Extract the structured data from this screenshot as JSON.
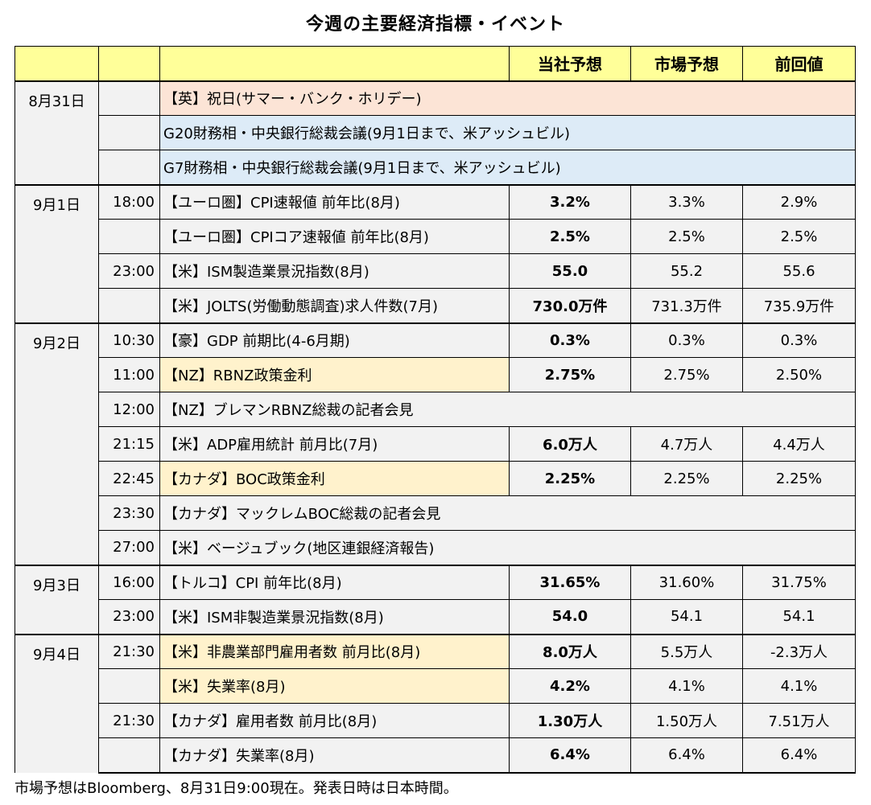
{
  "title": "今週の主要経済指標・イベント",
  "header": {
    "own": "当社予想",
    "market": "市場予想",
    "previous": "前回値"
  },
  "groups": [
    {
      "date": "8月31日",
      "rows": [
        {
          "time": "",
          "event": "【英】祝日(サマー・バンク・ホリデー)",
          "span": true,
          "hl": "pink"
        },
        {
          "time": "",
          "event": "G20財務相・中央銀行総裁会議(9月1日まで、米アッシュビル)",
          "span": true,
          "hl": "blue"
        },
        {
          "time": "",
          "event": "G7財務相・中央銀行総裁会議(9月1日まで、米アッシュビル)",
          "span": true,
          "hl": "blue"
        }
      ]
    },
    {
      "date": "9月1日",
      "rows": [
        {
          "time": "18:00",
          "event": "【ユーロ圏】CPI速報値 前年比(8月)",
          "own": "3.2%",
          "market": "3.3%",
          "previous": "2.9%"
        },
        {
          "time": "",
          "event": "【ユーロ圏】CPIコア速報値 前年比(8月)",
          "own": "2.5%",
          "market": "2.5%",
          "previous": "2.5%"
        },
        {
          "time": "23:00",
          "event": "【米】ISM製造業景況指数(8月)",
          "own": "55.0",
          "market": "55.2",
          "previous": "55.6"
        },
        {
          "time": "",
          "event": "【米】JOLTS(労働動態調査)求人件数(7月)",
          "own": "730.0万件",
          "market": "731.3万件",
          "previous": "735.9万件"
        }
      ]
    },
    {
      "date": "9月2日",
      "rows": [
        {
          "time": "10:30",
          "event": "【豪】GDP 前期比(4-6月期)",
          "own": "0.3%",
          "market": "0.3%",
          "previous": "0.3%"
        },
        {
          "time": "11:00",
          "event": "【NZ】RBNZ政策金利",
          "own": "2.75%",
          "market": "2.75%",
          "previous": "2.50%",
          "hl": "yellow"
        },
        {
          "time": "12:00",
          "event": "【NZ】ブレマンRBNZ総裁の記者会見",
          "span": true
        },
        {
          "time": "21:15",
          "event": "【米】ADP雇用統計 前月比(7月)",
          "own": "6.0万人",
          "market": "4.7万人",
          "previous": "4.4万人"
        },
        {
          "time": "22:45",
          "event": "【カナダ】BOC政策金利",
          "own": "2.25%",
          "market": "2.25%",
          "previous": "2.25%",
          "hl": "yellow"
        },
        {
          "time": "23:30",
          "event": "【カナダ】マックレムBOC総裁の記者会見",
          "span": true
        },
        {
          "time": "27:00",
          "event": "【米】ベージュブック(地区連銀経済報告)",
          "span": true
        }
      ]
    },
    {
      "date": "9月3日",
      "rows": [
        {
          "time": "16:00",
          "event": "【トルコ】CPI 前年比(8月)",
          "own": "31.65%",
          "market": "31.60%",
          "previous": "31.75%"
        },
        {
          "time": "23:00",
          "event": "【米】ISM非製造業景況指数(8月)",
          "own": "54.0",
          "market": "54.1",
          "previous": "54.1"
        }
      ]
    },
    {
      "date": "9月4日",
      "rows": [
        {
          "time": "21:30",
          "event": "【米】非農業部門雇用者数 前月比(8月)",
          "own": "8.0万人",
          "market": "5.5万人",
          "previous": "-2.3万人",
          "hl": "yellow"
        },
        {
          "time": "",
          "event": "【米】失業率(8月)",
          "own": "4.2%",
          "market": "4.1%",
          "previous": "4.1%",
          "hl": "yellow"
        },
        {
          "time": "21:30",
          "event": "【カナダ】雇用者数 前月比(8月)",
          "own": "1.30万人",
          "market": "1.50万人",
          "previous": "7.51万人"
        },
        {
          "time": "",
          "event": "【カナダ】失業率(8月)",
          "own": "6.4%",
          "market": "6.4%",
          "previous": "6.4%"
        }
      ]
    }
  ],
  "footnote": "市場予想はBloomberg、8月31日9:00現在。発表日時は日本時間。",
  "colors": {
    "header_bg": "#ffff99",
    "row_bg": "#f2f2f2",
    "pink": "#fce4d6",
    "blue": "#ddebf7",
    "yellow": "#fff2cc"
  }
}
